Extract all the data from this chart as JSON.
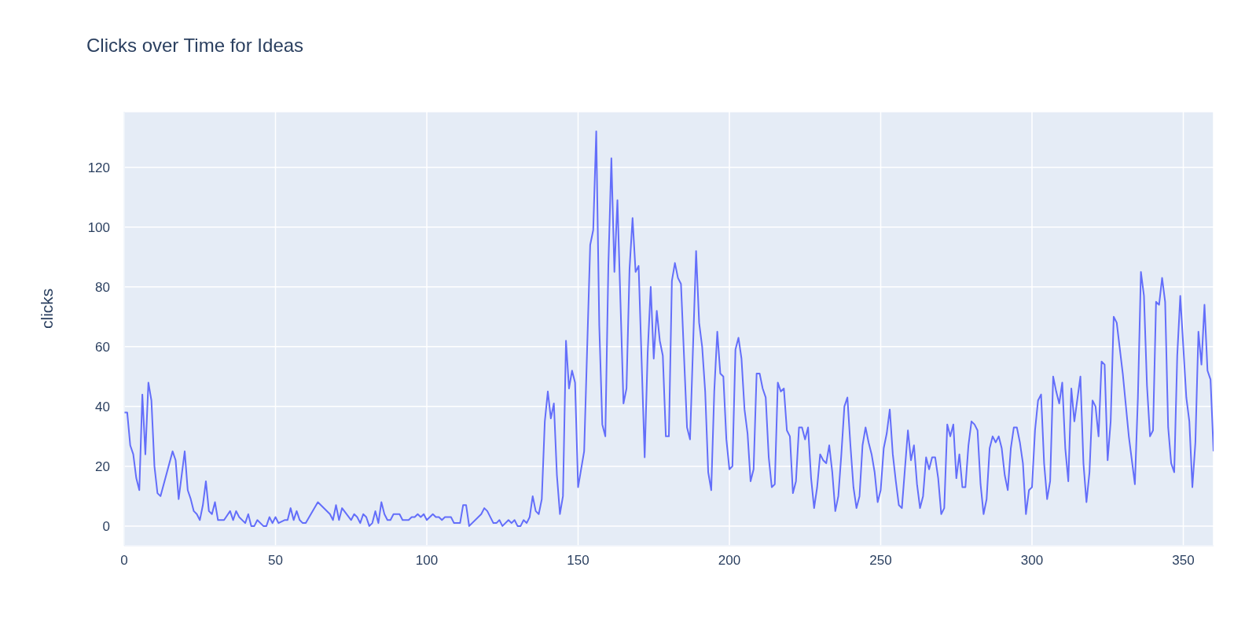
{
  "chart_data": {
    "type": "line",
    "title": "Clicks over Time for Ideas",
    "ylabel": "clicks",
    "x": [
      0,
      1,
      2,
      3,
      4,
      5,
      6,
      7,
      8,
      9,
      10,
      11,
      12,
      16,
      17,
      18,
      20,
      21,
      22,
      23,
      24,
      25,
      26,
      27,
      28,
      29,
      30,
      31,
      33,
      35,
      36,
      37,
      38,
      40,
      41,
      42,
      43,
      44,
      46,
      47,
      48,
      49,
      50,
      51,
      53,
      54,
      55,
      56,
      57,
      58,
      59,
      60,
      64,
      68,
      69,
      70,
      71,
      72,
      75,
      76,
      77,
      78,
      79,
      80,
      81,
      82,
      83,
      84,
      85,
      86,
      87,
      88,
      89,
      91,
      92,
      94,
      95,
      96,
      97,
      98,
      99,
      100,
      102,
      103,
      104,
      105,
      106,
      108,
      109,
      111,
      112,
      113,
      114,
      118,
      119,
      120,
      122,
      123,
      124,
      125,
      127,
      128,
      129,
      130,
      131,
      132,
      133,
      134,
      135,
      136,
      137,
      138,
      139,
      140,
      141,
      142,
      143,
      144,
      145,
      146,
      147,
      148,
      149,
      150,
      152,
      154,
      155,
      156,
      157,
      158,
      159,
      160,
      161,
      162,
      163,
      164,
      165,
      166,
      167,
      168,
      169,
      170,
      172,
      173,
      174,
      175,
      176,
      177,
      178,
      179,
      180,
      181,
      182,
      183,
      184,
      186,
      187,
      189,
      190,
      191,
      192,
      193,
      194,
      195,
      196,
      197,
      198,
      199,
      200,
      201,
      202,
      203,
      204,
      205,
      206,
      207,
      208,
      209,
      210,
      211,
      212,
      213,
      214,
      215,
      216,
      217,
      218,
      219,
      220,
      221,
      222,
      223,
      224,
      225,
      226,
      227,
      228,
      229,
      230,
      231,
      232,
      233,
      234,
      235,
      236,
      237,
      238,
      239,
      240,
      241,
      242,
      243,
      244,
      245,
      246,
      247,
      248,
      249,
      250,
      251,
      252,
      253,
      254,
      255,
      256,
      257,
      258,
      259,
      260,
      261,
      262,
      263,
      264,
      265,
      266,
      267,
      268,
      269,
      270,
      271,
      272,
      273,
      274,
      275,
      276,
      277,
      278,
      279,
      280,
      281,
      282,
      283,
      284,
      285,
      286,
      287,
      288,
      289,
      290,
      291,
      292,
      293,
      294,
      295,
      296,
      297,
      298,
      299,
      300,
      301,
      302,
      303,
      304,
      305,
      306,
      307,
      308,
      309,
      310,
      311,
      312,
      313,
      314,
      316,
      317,
      318,
      319,
      320,
      321,
      322,
      323,
      324,
      325,
      326,
      327,
      328,
      330,
      332,
      334,
      335,
      336,
      337,
      338,
      339,
      340,
      341,
      342,
      343,
      344,
      345,
      346,
      347,
      348,
      349,
      350,
      351,
      352,
      353,
      354,
      355,
      356,
      357,
      358,
      359,
      360
    ],
    "values": [
      38,
      38,
      27,
      24,
      16,
      12,
      44,
      24,
      48,
      42,
      20,
      11,
      10,
      25,
      22,
      9,
      25,
      12,
      9,
      5,
      4,
      2,
      7,
      15,
      5,
      4,
      8,
      2,
      2,
      5,
      2,
      5,
      3,
      1,
      4,
      0,
      0,
      2,
      0,
      0,
      3,
      1,
      3,
      1,
      2,
      2,
      6,
      2,
      5,
      2,
      1,
      1,
      8,
      4,
      2,
      7,
      2,
      6,
      2,
      4,
      3,
      1,
      4,
      3,
      0,
      1,
      5,
      1,
      8,
      4,
      2,
      2,
      4,
      4,
      2,
      2,
      3,
      3,
      4,
      3,
      4,
      2,
      4,
      3,
      3,
      2,
      3,
      3,
      1,
      1,
      7,
      7,
      0,
      4,
      6,
      5,
      1,
      1,
      2,
      0,
      2,
      1,
      2,
      0,
      0,
      2,
      1,
      3,
      10,
      5,
      4,
      9,
      35,
      45,
      36,
      41,
      17,
      4,
      10,
      62,
      46,
      52,
      48,
      13,
      25,
      94,
      99,
      132,
      67,
      34,
      30,
      87,
      123,
      85,
      109,
      75,
      41,
      46,
      86,
      103,
      85,
      87,
      23,
      58,
      80,
      56,
      72,
      62,
      57,
      30,
      30,
      82,
      88,
      83,
      81,
      33,
      29,
      92,
      68,
      60,
      45,
      18,
      12,
      45,
      65,
      51,
      50,
      29,
      19,
      20,
      59,
      63,
      56,
      39,
      31,
      15,
      19,
      51,
      51,
      46,
      43,
      23,
      13,
      14,
      48,
      45,
      46,
      32,
      30,
      11,
      15,
      33,
      33,
      29,
      33,
      16,
      6,
      13,
      24,
      22,
      21,
      27,
      18,
      5,
      10,
      24,
      40,
      43,
      27,
      13,
      6,
      10,
      27,
      33,
      28,
      24,
      18,
      8,
      12,
      26,
      31,
      39,
      24,
      15,
      7,
      6,
      19,
      32,
      22,
      27,
      14,
      6,
      10,
      23,
      19,
      23,
      23,
      16,
      4,
      6,
      34,
      30,
      34,
      16,
      24,
      13,
      13,
      27,
      35,
      34,
      32,
      14,
      4,
      9,
      26,
      30,
      28,
      30,
      26,
      17,
      12,
      26,
      33,
      33,
      28,
      21,
      4,
      12,
      13,
      32,
      42,
      44,
      21,
      9,
      15,
      50,
      45,
      41,
      48,
      26,
      15,
      46,
      35,
      50,
      21,
      8,
      18,
      42,
      40,
      30,
      55,
      54,
      22,
      35,
      70,
      68,
      51,
      30,
      14,
      43,
      85,
      77,
      47,
      30,
      32,
      75,
      74,
      83,
      75,
      33,
      21,
      18,
      57,
      77,
      60,
      43,
      35,
      13,
      28,
      65,
      54,
      74,
      52,
      49,
      25
    ],
    "color": "#636efa",
    "xlim": [
      0,
      360
    ],
    "xticks": [
      0,
      50,
      100,
      150,
      200,
      250,
      300,
      350
    ],
    "ylim": [
      -6.6,
      138.6
    ],
    "yticks": [
      0,
      20,
      40,
      60,
      80,
      100,
      120
    ],
    "grid": true,
    "legend": false,
    "marker": "none",
    "line_style": "solid"
  }
}
